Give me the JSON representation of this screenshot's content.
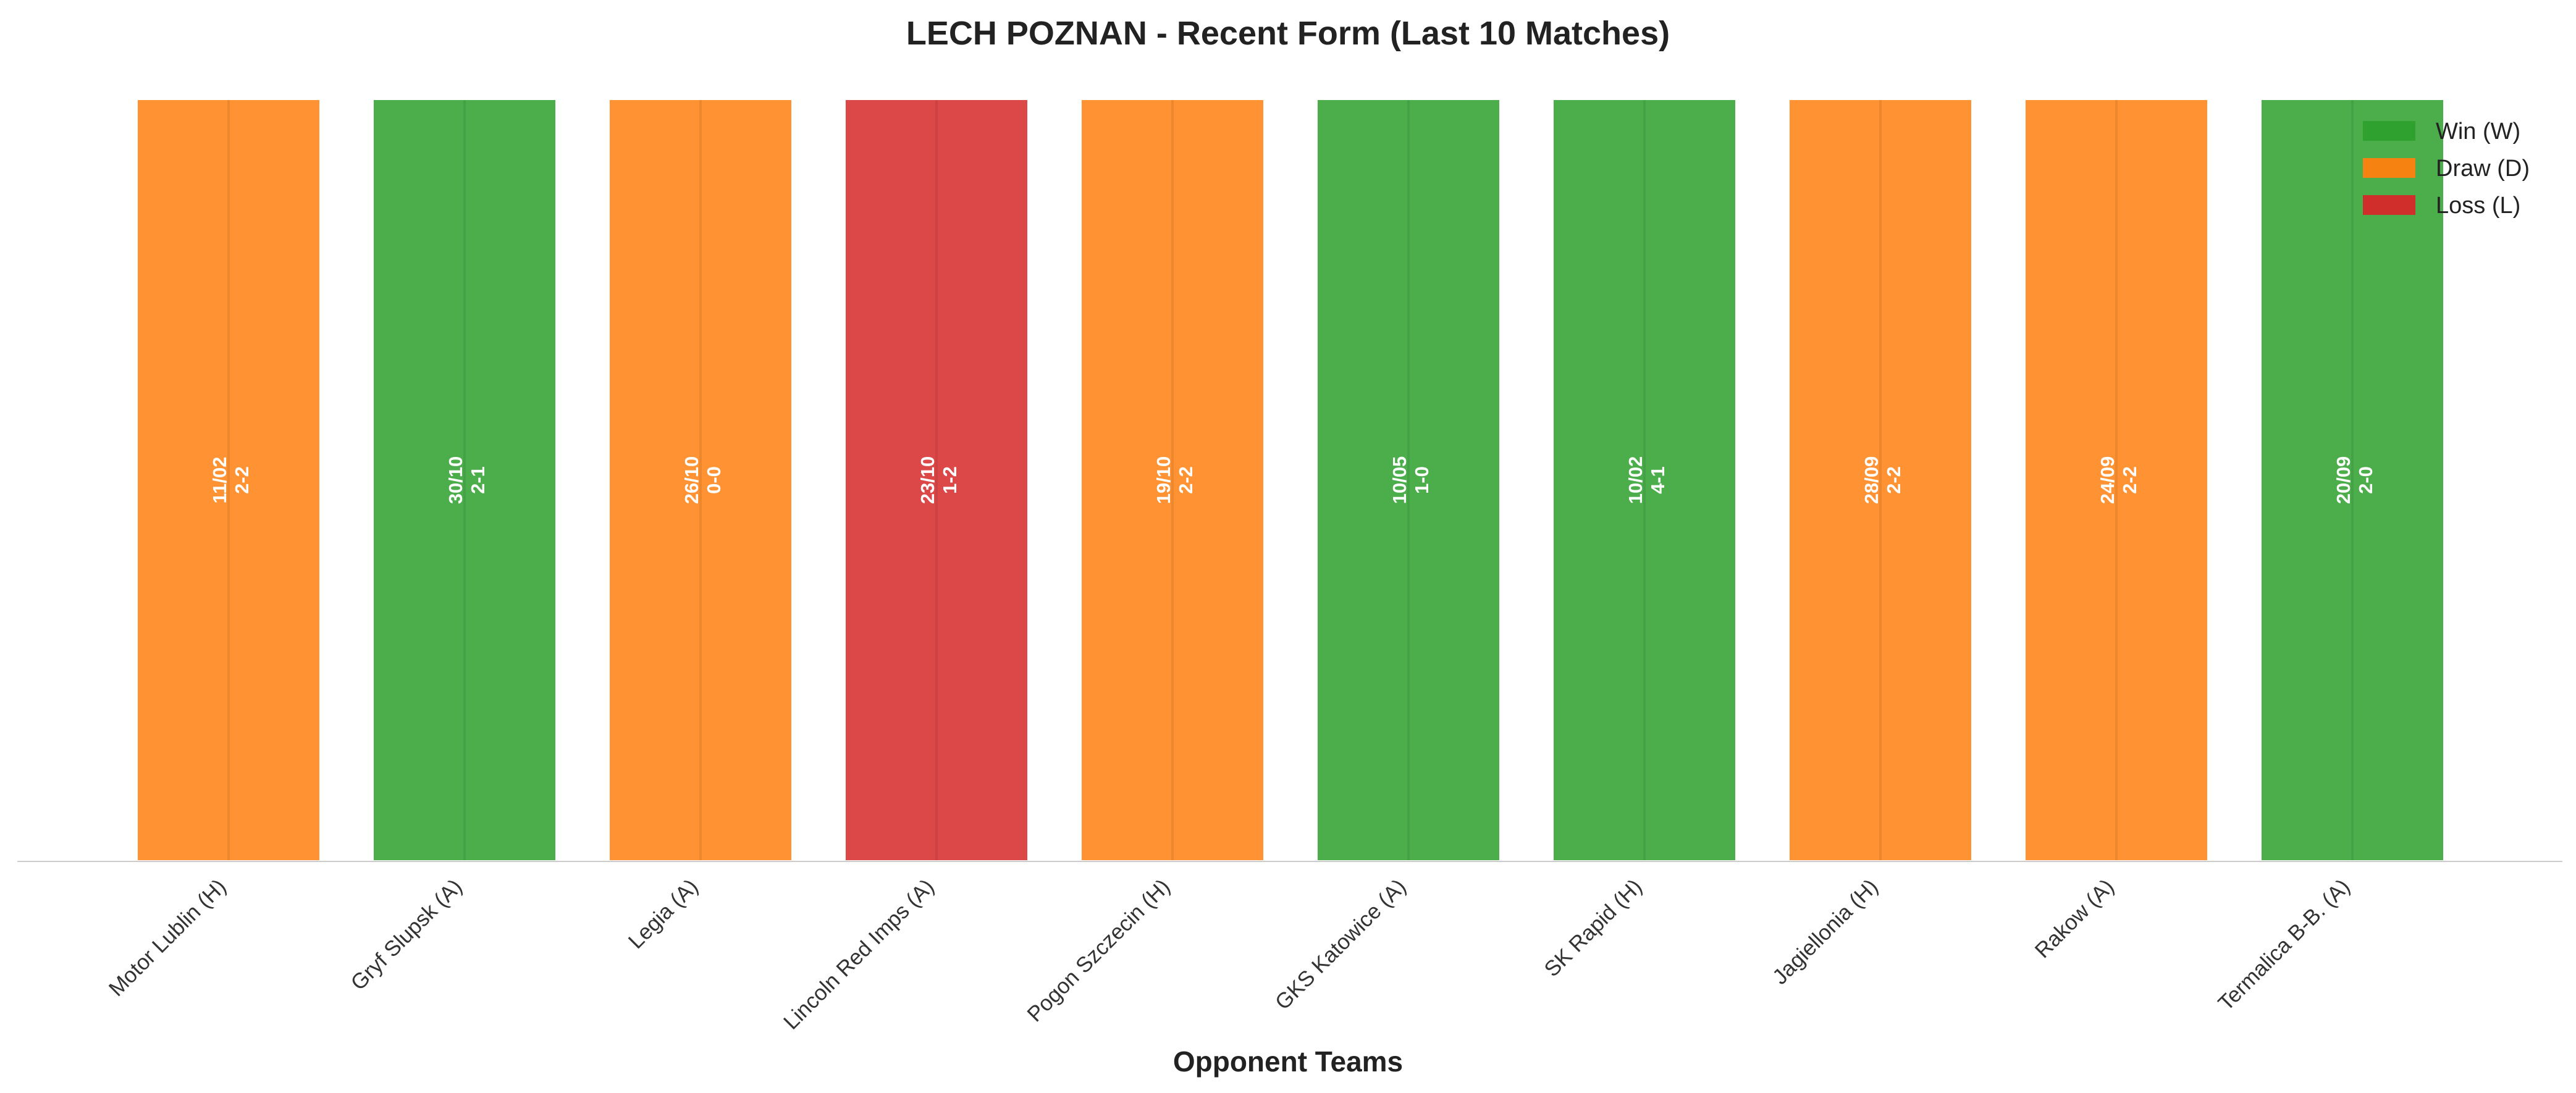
{
  "colors": {
    "W": "#2ca02c",
    "D": "#ff7f0e",
    "L": "#d62728"
  },
  "chart_data": {
    "type": "bar",
    "title": "LECH POZNAN - Recent Form (Last 10 Matches)",
    "xlabel": "Opponent Teams",
    "ylabel": "",
    "grid": false,
    "legend_position": "top-right",
    "legend": [
      {
        "key": "W",
        "label": "Win (W)"
      },
      {
        "key": "D",
        "label": "Draw (D)"
      },
      {
        "key": "L",
        "label": "Loss (L)"
      }
    ],
    "categories": [
      "Motor Lublin (H)",
      "Gryf Slupsk (A)",
      "Legia (A)",
      "Lincoln Red Imps (A)",
      "Pogon Szczecin (H)",
      "GKS Katowice (A)",
      "SK Rapid (H)",
      "Jagiellonia (H)",
      "Rakow (A)",
      "Termalica B-B. (A)"
    ],
    "values": [
      1,
      1,
      1,
      1,
      1,
      1,
      1,
      1,
      1,
      1
    ],
    "results": [
      "D",
      "W",
      "D",
      "L",
      "D",
      "W",
      "W",
      "D",
      "D",
      "W"
    ],
    "dates": [
      "11/02",
      "30/10",
      "26/10",
      "23/10",
      "19/10",
      "10/05",
      "10/02",
      "28/09",
      "24/09",
      "20/09"
    ],
    "scores": [
      "2-2",
      "2-1",
      "0-0",
      "1-2",
      "2-2",
      "1-0",
      "4-1",
      "2-2",
      "2-2",
      "2-0"
    ]
  }
}
